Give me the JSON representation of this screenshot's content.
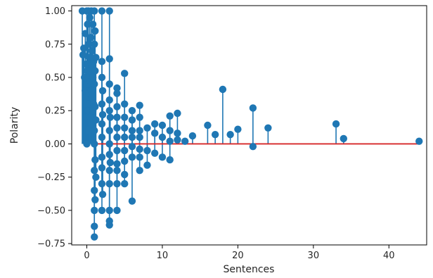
{
  "chart_data": {
    "type": "scatter",
    "style": "stem",
    "title": "",
    "xlabel": "Sentences",
    "ylabel": "Polarity",
    "xlim": [
      -2,
      45
    ],
    "ylim": [
      -0.76,
      1.04
    ],
    "xticks": [
      0,
      10,
      20,
      30,
      40
    ],
    "yticks": [
      -0.75,
      -0.5,
      -0.25,
      0.0,
      0.25,
      0.5,
      0.75,
      1.0
    ],
    "xtick_labels": [
      "0",
      "10",
      "20",
      "30",
      "40"
    ],
    "ytick_labels": [
      "−0.75",
      "−0.50",
      "−0.25",
      "0.00",
      "0.25",
      "0.50",
      "0.75",
      "1.00"
    ],
    "grid": false,
    "baseline": {
      "value": 0,
      "x_range": [
        1,
        44
      ],
      "color": "#d62728"
    },
    "marker_color": "#1f77b4",
    "stemline_color": "#1f77b4",
    "points": [
      {
        "x": -0.6,
        "y": 1.0
      },
      {
        "x": -0.5,
        "y": 0.67
      },
      {
        "x": -0.4,
        "y": 0.72
      },
      {
        "x": -0.3,
        "y": 0.5
      },
      {
        "x": -0.2,
        "y": 0.83
      },
      {
        "x": -0.2,
        "y": 0.4
      },
      {
        "x": -0.1,
        "y": 0.6
      },
      {
        "x": -0.1,
        "y": 0.35
      },
      {
        "x": 0.0,
        "y": 1.0
      },
      {
        "x": 0.0,
        "y": 0.55
      },
      {
        "x": 0.0,
        "y": 0.3
      },
      {
        "x": 0.0,
        "y": 0.0
      },
      {
        "x": 0.1,
        "y": 0.9
      },
      {
        "x": 0.1,
        "y": 0.45
      },
      {
        "x": 0.1,
        "y": 0.2
      },
      {
        "x": 0.2,
        "y": 1.0
      },
      {
        "x": 0.2,
        "y": 0.75
      },
      {
        "x": 0.2,
        "y": 0.5
      },
      {
        "x": 0.2,
        "y": 0.25
      },
      {
        "x": 0.3,
        "y": 0.65
      },
      {
        "x": 0.3,
        "y": 0.38
      },
      {
        "x": 0.3,
        "y": 0.1
      },
      {
        "x": 0.4,
        "y": 0.95
      },
      {
        "x": 0.4,
        "y": 0.55
      },
      {
        "x": 0.4,
        "y": 0.3
      },
      {
        "x": 0.5,
        "y": 0.8
      },
      {
        "x": 0.5,
        "y": 0.47
      },
      {
        "x": 0.5,
        "y": 0.2
      },
      {
        "x": 0.6,
        "y": 1.0
      },
      {
        "x": 0.6,
        "y": 0.6
      },
      {
        "x": 0.6,
        "y": 0.4
      },
      {
        "x": 0.6,
        "y": 0.15
      },
      {
        "x": 0.7,
        "y": 0.7
      },
      {
        "x": 0.7,
        "y": 0.35
      },
      {
        "x": 0.8,
        "y": 0.9
      },
      {
        "x": 0.8,
        "y": 0.5
      },
      {
        "x": 0.8,
        "y": 0.25
      },
      {
        "x": 0.9,
        "y": 0.62
      },
      {
        "x": 0.9,
        "y": 0.3
      },
      {
        "x": 1.0,
        "y": 1.0
      },
      {
        "x": 1.0,
        "y": 0.75
      },
      {
        "x": 1.0,
        "y": 0.45
      },
      {
        "x": 1.0,
        "y": 0.1
      },
      {
        "x": 1.0,
        "y": 0.0
      },
      {
        "x": 1.0,
        "y": -0.2
      },
      {
        "x": 1.0,
        "y": -0.35
      },
      {
        "x": 1.0,
        "y": -0.5
      },
      {
        "x": 1.0,
        "y": -0.62
      },
      {
        "x": 1.0,
        "y": -0.7
      },
      {
        "x": 1.1,
        "y": 0.85
      },
      {
        "x": 1.1,
        "y": 0.55
      },
      {
        "x": 1.1,
        "y": 0.28
      },
      {
        "x": 1.1,
        "y": -0.12
      },
      {
        "x": 1.1,
        "y": -0.42
      },
      {
        "x": 1.2,
        "y": 0.65
      },
      {
        "x": 1.2,
        "y": 0.18
      },
      {
        "x": 1.2,
        "y": -0.25
      },
      {
        "x": 2.0,
        "y": 1.0
      },
      {
        "x": 2.0,
        "y": 0.62
      },
      {
        "x": 2.0,
        "y": 0.5
      },
      {
        "x": 2.0,
        "y": 0.3
      },
      {
        "x": 2.0,
        "y": 0.15
      },
      {
        "x": 2.0,
        "y": 0.05
      },
      {
        "x": 2.0,
        "y": -0.1
      },
      {
        "x": 2.0,
        "y": -0.18
      },
      {
        "x": 2.0,
        "y": -0.3
      },
      {
        "x": 2.0,
        "y": -0.5
      },
      {
        "x": 2.1,
        "y": 0.4
      },
      {
        "x": 2.1,
        "y": 0.22
      },
      {
        "x": 2.1,
        "y": -0.38
      },
      {
        "x": 3.0,
        "y": 1.0
      },
      {
        "x": 3.0,
        "y": 0.64
      },
      {
        "x": 3.0,
        "y": 0.45
      },
      {
        "x": 3.0,
        "y": 0.33
      },
      {
        "x": 3.0,
        "y": 0.25
      },
      {
        "x": 3.0,
        "y": 0.1
      },
      {
        "x": 3.0,
        "y": 0.0
      },
      {
        "x": 3.0,
        "y": -0.08
      },
      {
        "x": 3.0,
        "y": -0.2
      },
      {
        "x": 3.0,
        "y": -0.3
      },
      {
        "x": 3.0,
        "y": -0.5
      },
      {
        "x": 3.0,
        "y": -0.58
      },
      {
        "x": 3.0,
        "y": -0.61
      },
      {
        "x": 3.1,
        "y": 0.2
      },
      {
        "x": 3.1,
        "y": -0.14
      },
      {
        "x": 4.0,
        "y": 0.42
      },
      {
        "x": 4.0,
        "y": 0.38
      },
      {
        "x": 4.0,
        "y": 0.28
      },
      {
        "x": 4.0,
        "y": 0.2
      },
      {
        "x": 4.0,
        "y": 0.12
      },
      {
        "x": 4.0,
        "y": 0.05
      },
      {
        "x": 4.0,
        "y": -0.05
      },
      {
        "x": 4.0,
        "y": -0.15
      },
      {
        "x": 4.0,
        "y": -0.2
      },
      {
        "x": 4.0,
        "y": -0.3
      },
      {
        "x": 4.0,
        "y": -0.5
      },
      {
        "x": 5.0,
        "y": 0.53
      },
      {
        "x": 5.0,
        "y": 0.3
      },
      {
        "x": 5.0,
        "y": 0.2
      },
      {
        "x": 5.0,
        "y": 0.12
      },
      {
        "x": 5.0,
        "y": 0.05
      },
      {
        "x": 5.0,
        "y": -0.05
      },
      {
        "x": 5.0,
        "y": -0.13
      },
      {
        "x": 5.0,
        "y": -0.23
      },
      {
        "x": 5.0,
        "y": -0.3
      },
      {
        "x": 6.0,
        "y": 0.25
      },
      {
        "x": 6.0,
        "y": 0.18
      },
      {
        "x": 6.0,
        "y": 0.1
      },
      {
        "x": 6.0,
        "y": 0.05
      },
      {
        "x": 6.0,
        "y": -0.02
      },
      {
        "x": 6.0,
        "y": -0.1
      },
      {
        "x": 6.0,
        "y": -0.43
      },
      {
        "x": 7.0,
        "y": 0.29
      },
      {
        "x": 7.0,
        "y": 0.2
      },
      {
        "x": 7.0,
        "y": 0.1
      },
      {
        "x": 7.0,
        "y": 0.05
      },
      {
        "x": 7.0,
        "y": -0.04
      },
      {
        "x": 7.0,
        "y": -0.1
      },
      {
        "x": 7.0,
        "y": -0.2
      },
      {
        "x": 8.0,
        "y": 0.12
      },
      {
        "x": 8.0,
        "y": -0.05
      },
      {
        "x": 8.0,
        "y": -0.16
      },
      {
        "x": 9.0,
        "y": 0.15
      },
      {
        "x": 9.0,
        "y": 0.08
      },
      {
        "x": 9.0,
        "y": -0.07
      },
      {
        "x": 10.0,
        "y": 0.14
      },
      {
        "x": 10.0,
        "y": 0.05
      },
      {
        "x": 10.0,
        "y": -0.1
      },
      {
        "x": 11.0,
        "y": 0.21
      },
      {
        "x": 11.0,
        "y": 0.1
      },
      {
        "x": 11.0,
        "y": 0.02
      },
      {
        "x": 11.0,
        "y": -0.12
      },
      {
        "x": 12.0,
        "y": 0.23
      },
      {
        "x": 12.0,
        "y": 0.08
      },
      {
        "x": 12.0,
        "y": 0.03
      },
      {
        "x": 13.0,
        "y": 0.02
      },
      {
        "x": 14.0,
        "y": 0.06
      },
      {
        "x": 16.0,
        "y": 0.14
      },
      {
        "x": 17.0,
        "y": 0.07
      },
      {
        "x": 18.0,
        "y": 0.41
      },
      {
        "x": 19.0,
        "y": 0.07
      },
      {
        "x": 20.0,
        "y": 0.11
      },
      {
        "x": 22.0,
        "y": 0.27
      },
      {
        "x": 22.0,
        "y": -0.02
      },
      {
        "x": 24.0,
        "y": 0.12
      },
      {
        "x": 33.0,
        "y": 0.15
      },
      {
        "x": 34.0,
        "y": 0.04
      },
      {
        "x": 44.0,
        "y": 0.02
      }
    ]
  }
}
